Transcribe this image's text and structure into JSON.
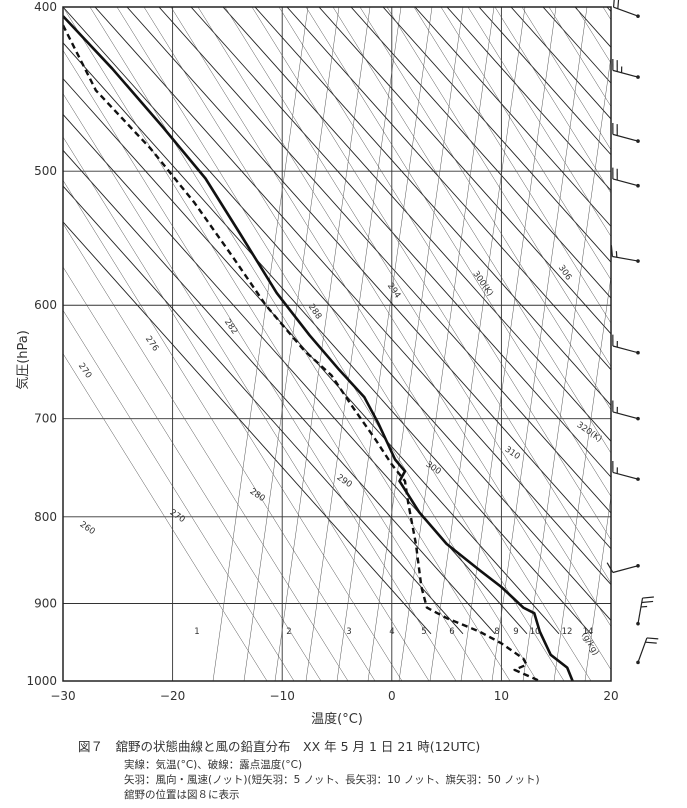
{
  "chart_data": {
    "type": "line",
    "xlabel": "温度(°C)",
    "ylabel": "気圧(hPa)",
    "xlim": [
      -30,
      20
    ],
    "ylim": [
      1000,
      400
    ],
    "yscale": "log",
    "grid": true,
    "x_ticks": [
      "−30",
      "−20",
      "−10",
      "0",
      "10",
      "20"
    ],
    "y_ticks": [
      "400",
      "500",
      "600",
      "700",
      "800",
      "900",
      "1000"
    ],
    "series": [
      {
        "style": "solid",
        "x": [
          -30.0,
          -25.5,
          -21.0,
          -17.0,
          -13.8,
          -10.5,
          -7.5,
          -4.8,
          -2.5,
          -1.2,
          0.3,
          1.2,
          0.7,
          2.5,
          5.0,
          8.0,
          10.0,
          12.0,
          13.0,
          13.5,
          14.5,
          16.0,
          16.5
        ],
        "y": [
          405,
          435,
          470,
          505,
          545,
          590,
          625,
          655,
          680,
          705,
          740,
          752,
          762,
          795,
          830,
          860,
          880,
          905,
          912,
          935,
          965,
          982,
          1000
        ]
      },
      {
        "style": "dashed",
        "x": [
          -30.0,
          -27.0,
          -22.0,
          -18.0,
          -14.5,
          -11.5,
          -8.0,
          -5.5,
          -3.5,
          -1.5,
          0.0,
          1.2,
          1.5,
          2.2,
          2.7,
          3.2,
          5.0,
          8.0,
          10.0,
          12.0,
          12.3,
          11.2,
          13.5
        ],
        "y": [
          410,
          448,
          485,
          522,
          562,
          600,
          638,
          660,
          690,
          720,
          745,
          762,
          785,
          830,
          880,
          905,
          918,
          935,
          950,
          970,
          978,
          985,
          1000
        ]
      }
    ],
    "iso_labels": {
      "mixing_ratio": [
        "1",
        "2",
        "3",
        "4",
        "5",
        "6",
        "8",
        "9",
        "10",
        "12",
        "14",
        "(g/kg)"
      ],
      "dry_adiabat": [
        "260",
        "270",
        "280",
        "290",
        "300",
        "310",
        "320(K)"
      ],
      "moist_adiabat": [
        "270",
        "276",
        "282",
        "288",
        "294",
        "300(K)",
        "306"
      ]
    },
    "wind_barbs": [
      {
        "pressure": 405,
        "direction_deg": 290,
        "speed_kt": 20
      },
      {
        "pressure": 440,
        "direction_deg": 285,
        "speed_kt": 25
      },
      {
        "pressure": 480,
        "direction_deg": 285,
        "speed_kt": 20
      },
      {
        "pressure": 510,
        "direction_deg": 285,
        "speed_kt": 20
      },
      {
        "pressure": 565,
        "direction_deg": 280,
        "speed_kt": 15
      },
      {
        "pressure": 640,
        "direction_deg": 285,
        "speed_kt": 15
      },
      {
        "pressure": 700,
        "direction_deg": 285,
        "speed_kt": 15
      },
      {
        "pressure": 760,
        "direction_deg": 285,
        "speed_kt": 15
      },
      {
        "pressure": 855,
        "direction_deg": 255,
        "speed_kt": 10
      },
      {
        "pressure": 925,
        "direction_deg": 10,
        "speed_kt": 25
      },
      {
        "pressure": 975,
        "direction_deg": 20,
        "speed_kt": 20
      }
    ]
  },
  "caption": {
    "title": "図７　舘野の状態曲線と風の鉛直分布　XX 年 5 月 1 日 21 時(12UTC)",
    "line1": "実線：気温(°C)、破線：露点温度(°C)",
    "line2": "矢羽：風向・風速(ノット)(短矢羽：5 ノット、長矢羽：10 ノット、旗矢羽：50 ノット)",
    "line3": "舘野の位置は図８に表示"
  }
}
